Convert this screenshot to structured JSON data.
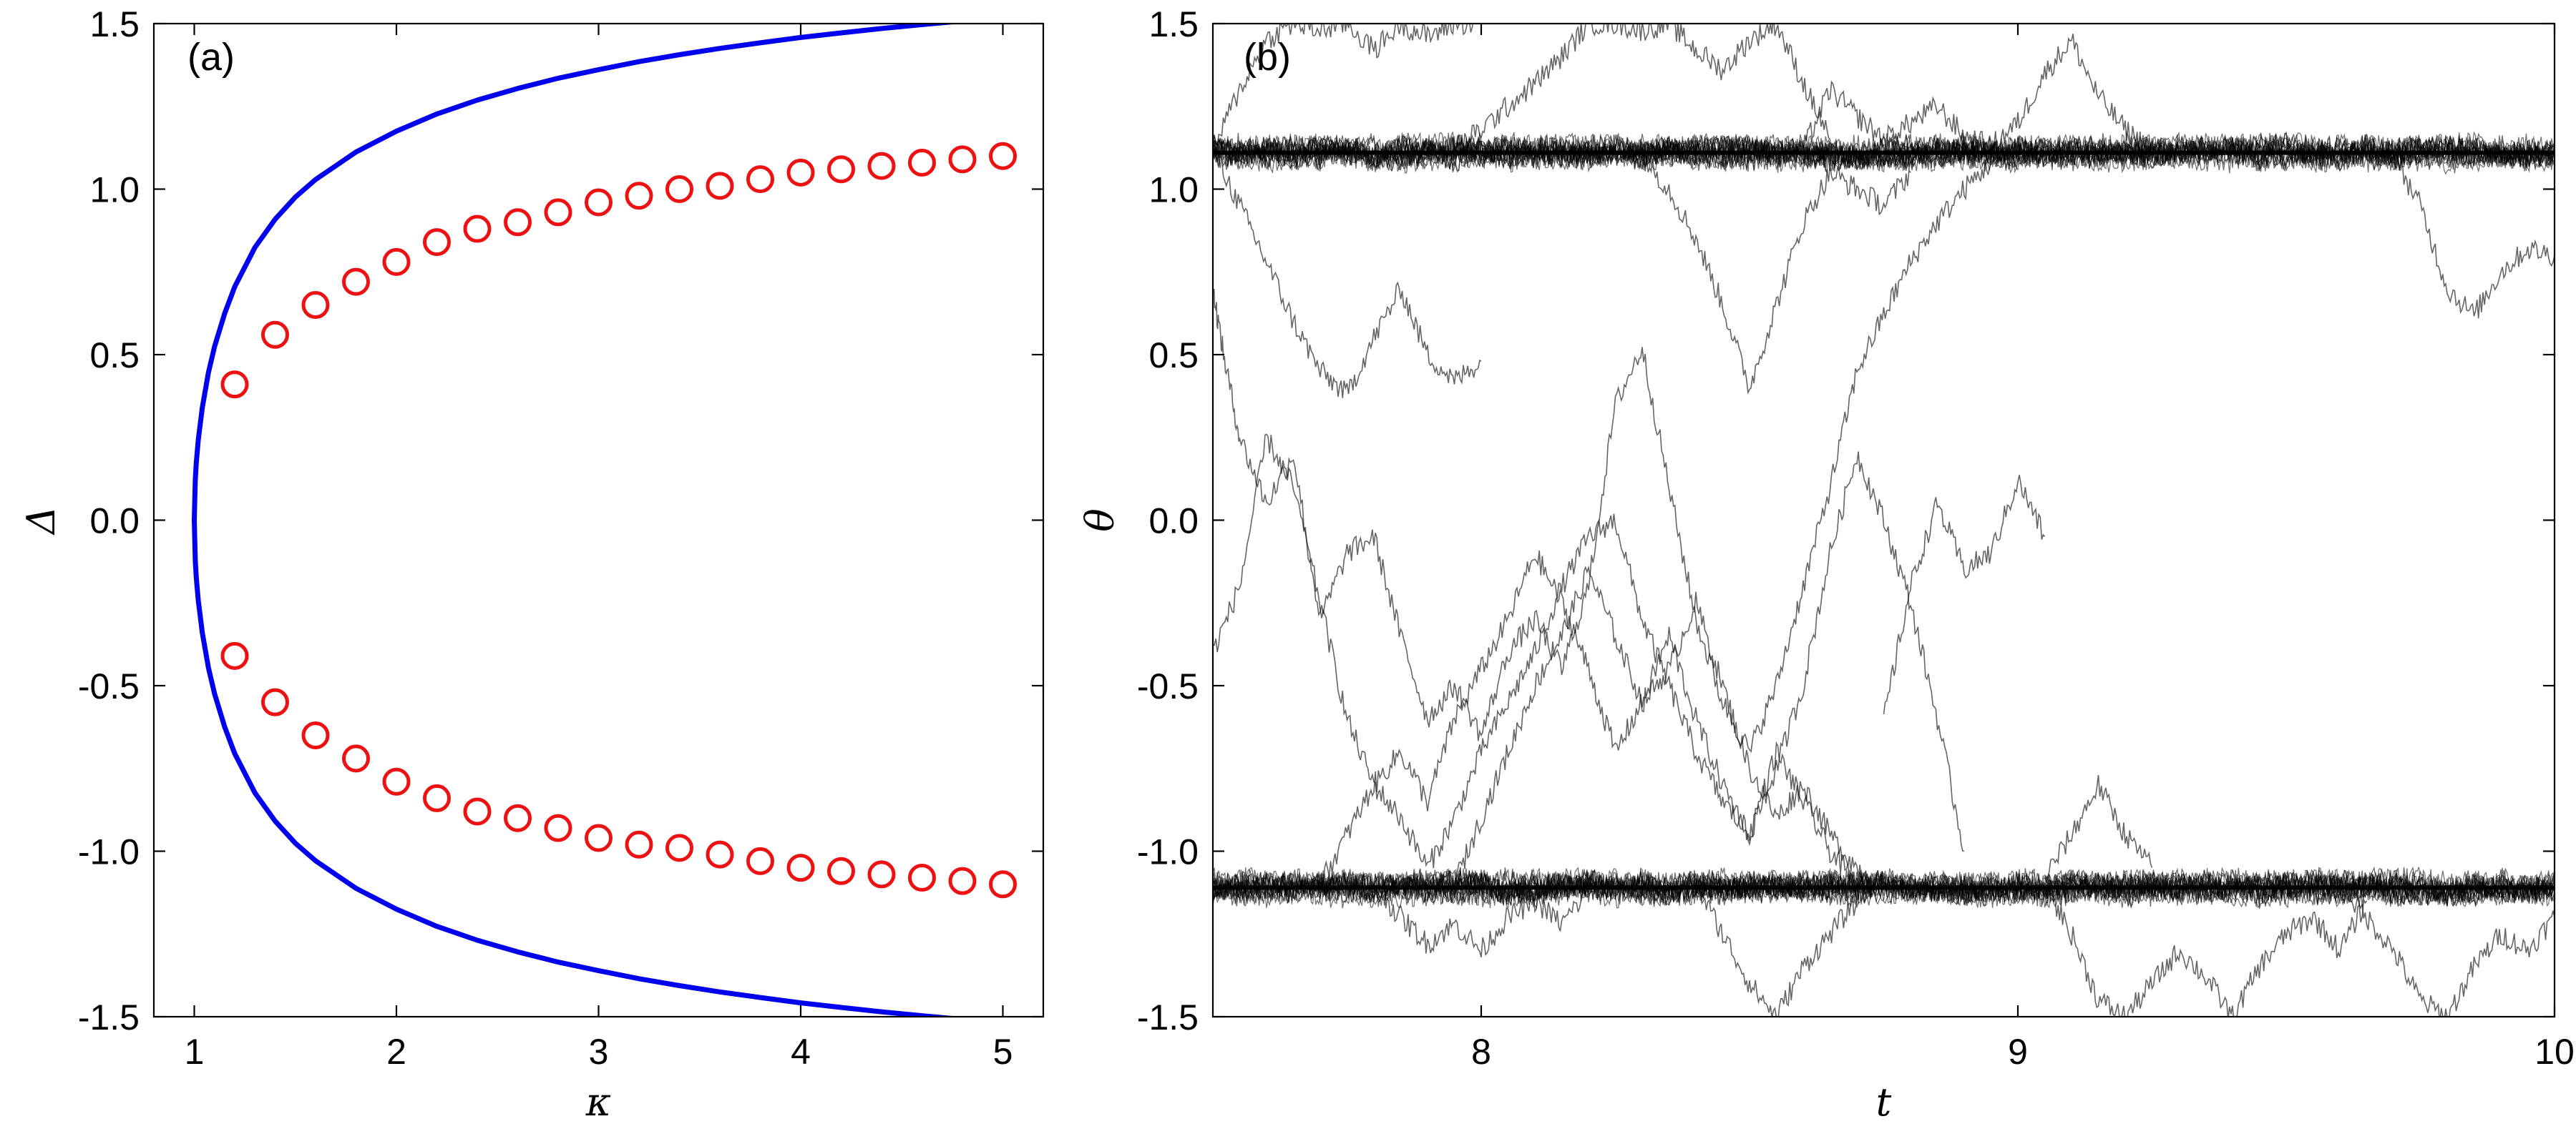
{
  "chart_data": [
    {
      "type": "line",
      "panel_label": "(a)",
      "xlabel": "κ",
      "ylabel": "Δ",
      "xlim": [
        0.8,
        5.2
      ],
      "ylim": [
        -1.5,
        1.5
      ],
      "xticks": [
        1,
        2,
        3,
        4,
        5
      ],
      "xtick_labels": [
        "1",
        "2",
        "3",
        "4",
        "5"
      ],
      "yticks": [
        -1.5,
        -1.0,
        -0.5,
        0.0,
        0.5,
        1.0,
        1.5
      ],
      "ytick_labels": [
        "-1.5",
        "-1.0",
        "-0.5",
        "0.0",
        "0.5",
        "1.0",
        "1.5"
      ],
      "grid": false,
      "series": [
        {
          "kind": "line",
          "color": "#0000ee",
          "x": [
            1.0,
            1.005,
            1.01,
            1.02,
            1.04,
            1.07,
            1.1,
            1.15,
            1.2,
            1.3,
            1.4,
            1.5,
            1.6,
            1.8,
            2.0,
            2.2,
            2.4,
            2.6,
            2.8,
            3.0,
            3.2,
            3.4,
            3.6,
            3.8,
            4.0,
            4.2,
            4.4,
            4.6,
            4.8,
            5.0,
            5.2
          ],
          "y_upper": [
            0.0,
            0.122,
            0.173,
            0.243,
            0.341,
            0.446,
            0.524,
            0.624,
            0.705,
            0.824,
            0.909,
            0.976,
            1.029,
            1.112,
            1.175,
            1.227,
            1.269,
            1.304,
            1.335,
            1.361,
            1.385,
            1.406,
            1.425,
            1.442,
            1.458,
            1.472,
            1.485,
            1.497,
            1.508,
            1.519,
            1.528
          ],
          "y_lower": [
            0.0,
            -0.122,
            -0.173,
            -0.243,
            -0.341,
            -0.446,
            -0.524,
            -0.624,
            -0.705,
            -0.824,
            -0.909,
            -0.976,
            -1.029,
            -1.112,
            -1.175,
            -1.227,
            -1.269,
            -1.304,
            -1.335,
            -1.361,
            -1.385,
            -1.406,
            -1.425,
            -1.442,
            -1.458,
            -1.472,
            -1.485,
            -1.497,
            -1.508,
            -1.519,
            -1.528
          ]
        },
        {
          "kind": "scatter",
          "marker": "open-circle",
          "color": "#ee1111",
          "x": [
            1.2,
            1.4,
            1.6,
            1.8,
            2.0,
            2.2,
            2.4,
            2.6,
            2.8,
            3.0,
            3.2,
            3.4,
            3.6,
            3.8,
            4.0,
            4.2,
            4.4,
            4.6,
            4.8,
            5.0
          ],
          "y_upper": [
            0.41,
            0.56,
            0.65,
            0.72,
            0.78,
            0.84,
            0.88,
            0.9,
            0.93,
            0.96,
            0.98,
            1.0,
            1.01,
            1.03,
            1.05,
            1.06,
            1.07,
            1.08,
            1.09,
            1.1
          ],
          "y_lower": [
            -0.41,
            -0.55,
            -0.65,
            -0.72,
            -0.79,
            -0.84,
            -0.88,
            -0.9,
            -0.93,
            -0.96,
            -0.98,
            -0.99,
            -1.01,
            -1.03,
            -1.05,
            -1.06,
            -1.07,
            -1.08,
            -1.09,
            -1.1
          ]
        }
      ]
    },
    {
      "type": "line",
      "panel_label": "(b)",
      "xlabel": "t",
      "ylabel": "θ",
      "xlim": [
        7.5,
        10.0
      ],
      "ylim": [
        -1.5,
        1.5
      ],
      "xticks": [
        8,
        9,
        10
      ],
      "xtick_labels": [
        "8",
        "9",
        "10"
      ],
      "yticks": [
        -1.5,
        -1.0,
        -0.5,
        0.0,
        0.5,
        1.0,
        1.5
      ],
      "ytick_labels": [
        "-1.5",
        "-1.0",
        "-0.5",
        "0.0",
        "0.5",
        "1.0",
        "1.5"
      ],
      "grid": false,
      "line_color": "#000000",
      "stable_levels": [
        1.11,
        -1.11
      ],
      "series": [
        {
          "kind": "reference",
          "y": [
            1.11,
            1.11
          ],
          "x": [
            7.5,
            10.0
          ]
        },
        {
          "kind": "reference",
          "y": [
            -1.11,
            -1.11
          ],
          "x": [
            7.5,
            10.0
          ]
        },
        {
          "kind": "trajectory",
          "x": [
            7.5,
            7.55,
            7.6,
            7.65,
            7.7,
            7.75,
            7.8,
            7.85,
            7.9,
            7.95,
            8.0
          ],
          "y": [
            1.12,
            1.3,
            1.45,
            1.5,
            1.48,
            1.5,
            1.42,
            1.5,
            1.46,
            1.5,
            1.5
          ]
        },
        {
          "kind": "trajectory",
          "x": [
            7.95,
            8.0,
            8.05,
            8.1,
            8.15,
            8.2,
            8.25,
            8.3,
            8.35,
            8.4,
            8.45,
            8.5,
            8.55,
            8.6,
            8.65
          ],
          "y": [
            1.12,
            1.18,
            1.25,
            1.32,
            1.4,
            1.5,
            1.5,
            1.48,
            1.5,
            1.42,
            1.36,
            1.45,
            1.5,
            1.32,
            1.15
          ]
        },
        {
          "kind": "trajectory",
          "x": [
            8.6,
            8.65,
            8.7,
            8.75,
            8.8,
            8.85,
            8.9,
            8.95,
            9.0,
            9.05,
            9.1,
            9.15,
            9.2,
            9.25
          ],
          "y": [
            1.12,
            1.3,
            1.22,
            1.15,
            1.2,
            1.25,
            1.16,
            1.13,
            1.2,
            1.35,
            1.45,
            1.28,
            1.18,
            1.12
          ]
        },
        {
          "kind": "trajectory",
          "x": [
            7.5,
            7.55,
            7.6,
            7.65,
            7.7,
            7.75,
            7.8,
            7.85,
            7.9,
            7.95,
            8.0
          ],
          "y": [
            1.12,
            0.95,
            0.78,
            0.6,
            0.45,
            0.38,
            0.55,
            0.7,
            0.5,
            0.42,
            0.48
          ]
        },
        {
          "kind": "trajectory",
          "x": [
            8.3,
            8.35,
            8.4,
            8.45,
            8.5,
            8.55,
            8.6,
            8.65,
            8.7,
            8.75,
            8.8
          ],
          "y": [
            1.1,
            1.0,
            0.85,
            0.65,
            0.4,
            0.65,
            0.9,
            1.05,
            1.0,
            0.95,
            1.05
          ]
        },
        {
          "kind": "trajectory",
          "x": [
            9.7,
            9.75,
            9.8,
            9.85,
            9.9,
            9.95,
            10.0
          ],
          "y": [
            1.1,
            0.95,
            0.7,
            0.62,
            0.75,
            0.82,
            0.8
          ]
        },
        {
          "kind": "trajectory",
          "x": [
            7.5,
            7.52,
            7.55,
            7.6,
            7.65,
            7.7,
            7.75,
            7.8,
            7.85,
            7.9,
            7.95,
            8.0,
            8.05,
            8.1,
            8.15,
            8.2,
            8.25,
            8.3,
            8.35,
            8.4,
            8.45,
            8.5,
            8.55,
            8.6,
            8.65,
            8.7,
            8.75,
            8.8,
            8.85,
            8.9,
            8.95,
            9.0,
            9.05
          ],
          "y": [
            0.7,
            0.5,
            0.25,
            0.05,
            0.2,
            -0.3,
            -0.1,
            -0.05,
            -0.35,
            -0.6,
            -0.5,
            -0.65,
            -0.4,
            -0.3,
            -0.45,
            -0.2,
            0.35,
            0.52,
            0.1,
            -0.3,
            -0.55,
            -0.7,
            -0.5,
            -0.2,
            0.1,
            0.45,
            0.62,
            0.78,
            0.9,
            1.0,
            1.08,
            1.1,
            1.11
          ]
        },
        {
          "kind": "trajectory",
          "x": [
            7.5,
            7.55,
            7.6,
            7.65,
            7.7,
            7.75,
            7.8,
            7.85,
            7.9,
            7.95,
            8.0,
            8.05,
            8.1,
            8.15,
            8.2,
            8.25,
            8.3,
            8.35,
            8.4,
            8.45,
            8.5,
            8.55,
            8.6,
            8.65,
            8.7,
            8.75,
            8.8,
            8.85,
            8.9
          ],
          "y": [
            -0.4,
            -0.2,
            0.25,
            0.1,
            -0.25,
            -0.6,
            -0.8,
            -0.9,
            -1.05,
            -0.9,
            -0.7,
            -0.55,
            -0.4,
            -0.2,
            -0.05,
            0.0,
            -0.3,
            -0.5,
            -0.7,
            -0.85,
            -0.95,
            -0.75,
            -0.5,
            -0.1,
            0.2,
            0.0,
            -0.25,
            -0.6,
            -1.0
          ]
        },
        {
          "kind": "trajectory",
          "x": [
            7.7,
            7.75,
            7.8,
            7.85,
            7.9,
            7.95,
            8.0,
            8.05,
            8.1,
            8.15,
            8.2,
            8.25,
            8.3,
            8.35,
            8.4,
            8.45,
            8.5,
            8.55,
            8.6,
            8.65,
            8.7
          ],
          "y": [
            -1.1,
            -0.95,
            -0.8,
            -0.7,
            -0.85,
            -0.6,
            -0.45,
            -0.3,
            -0.1,
            -0.25,
            -0.45,
            -0.7,
            -0.55,
            -0.35,
            -0.6,
            -0.8,
            -0.95,
            -0.7,
            -0.85,
            -1.0,
            -1.1
          ]
        },
        {
          "kind": "trajectory",
          "x": [
            7.95,
            8.0,
            8.05,
            8.1,
            8.15,
            8.2,
            8.25,
            8.3,
            8.35,
            8.4,
            8.45,
            8.5,
            8.55,
            8.6,
            8.65,
            8.7,
            8.75
          ],
          "y": [
            -1.1,
            -0.9,
            -0.7,
            -0.5,
            -0.35,
            -0.15,
            -0.35,
            -0.55,
            -0.45,
            -0.25,
            -0.5,
            -0.75,
            -0.9,
            -0.8,
            -0.95,
            -1.05,
            -1.1
          ]
        },
        {
          "kind": "trajectory",
          "x": [
            8.75,
            8.8,
            8.85,
            8.9,
            8.95,
            9.0,
            9.05
          ],
          "y": [
            -0.6,
            -0.2,
            0.05,
            -0.15,
            -0.1,
            0.12,
            -0.05
          ]
        },
        {
          "kind": "trajectory",
          "x": [
            8.4,
            8.45,
            8.5,
            8.55,
            8.6,
            8.65,
            8.7
          ],
          "y": [
            -1.1,
            -1.25,
            -1.4,
            -1.5,
            -1.35,
            -1.25,
            -1.15
          ]
        },
        {
          "kind": "trajectory",
          "x": [
            9.05,
            9.1,
            9.15,
            9.2,
            9.25,
            9.3,
            9.35,
            9.4,
            9.45,
            9.5,
            9.55,
            9.6,
            9.65
          ],
          "y": [
            -1.1,
            -1.25,
            -1.45,
            -1.5,
            -1.4,
            -1.3,
            -1.38,
            -1.5,
            -1.35,
            -1.25,
            -1.2,
            -1.3,
            -1.15
          ]
        },
        {
          "kind": "trajectory",
          "x": [
            9.6,
            9.65,
            9.7,
            9.75,
            9.8,
            9.85,
            9.9,
            9.95,
            10.0
          ],
          "y": [
            -1.1,
            -1.2,
            -1.3,
            -1.45,
            -1.5,
            -1.35,
            -1.25,
            -1.3,
            -1.2
          ]
        },
        {
          "kind": "trajectory",
          "x": [
            7.8,
            7.85,
            7.9,
            7.95,
            8.0,
            8.05,
            8.1,
            8.15,
            8.2
          ],
          "y": [
            -1.1,
            -1.2,
            -1.28,
            -1.22,
            -1.3,
            -1.2,
            -1.15,
            -1.22,
            -1.12
          ]
        },
        {
          "kind": "trajectory",
          "x": [
            9.05,
            9.1,
            9.15,
            9.2,
            9.25
          ],
          "y": [
            -1.08,
            -0.95,
            -0.8,
            -0.95,
            -1.05
          ]
        }
      ]
    }
  ]
}
